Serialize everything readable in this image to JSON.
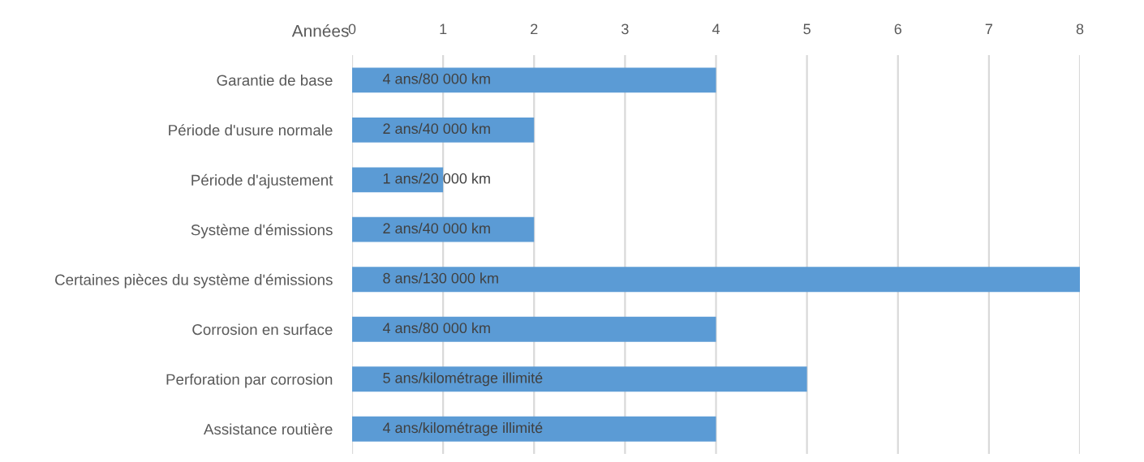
{
  "chart_data": {
    "type": "bar",
    "orientation": "horizontal",
    "xlabel": "Années",
    "categories": [
      "Garantie de base",
      "Période d'usure normale",
      "Période d'ajustement",
      "Système d'émissions",
      "Certaines pièces du système d'émissions",
      "Corrosion en surface",
      "Perforation par corrosion",
      "Assistance routière"
    ],
    "values": [
      4,
      2,
      1,
      2,
      8,
      4,
      5,
      4
    ],
    "color": "#5b9bd5",
    "value_labels": [
      "4 ans/80 000 km",
      "2 ans/40 000 km",
      "1 ans/20 000 km",
      "2 ans/40 000 km",
      "8 ans/130 000 km",
      "4 ans/80 000 km",
      "5 ans/kilométrage illimité",
      "4 ans/kilométrage illimité"
    ],
    "xlim": [
      0,
      8
    ],
    "xticks": [
      0,
      1,
      2,
      3,
      4,
      5,
      6,
      7,
      8
    ],
    "grid": "x"
  }
}
